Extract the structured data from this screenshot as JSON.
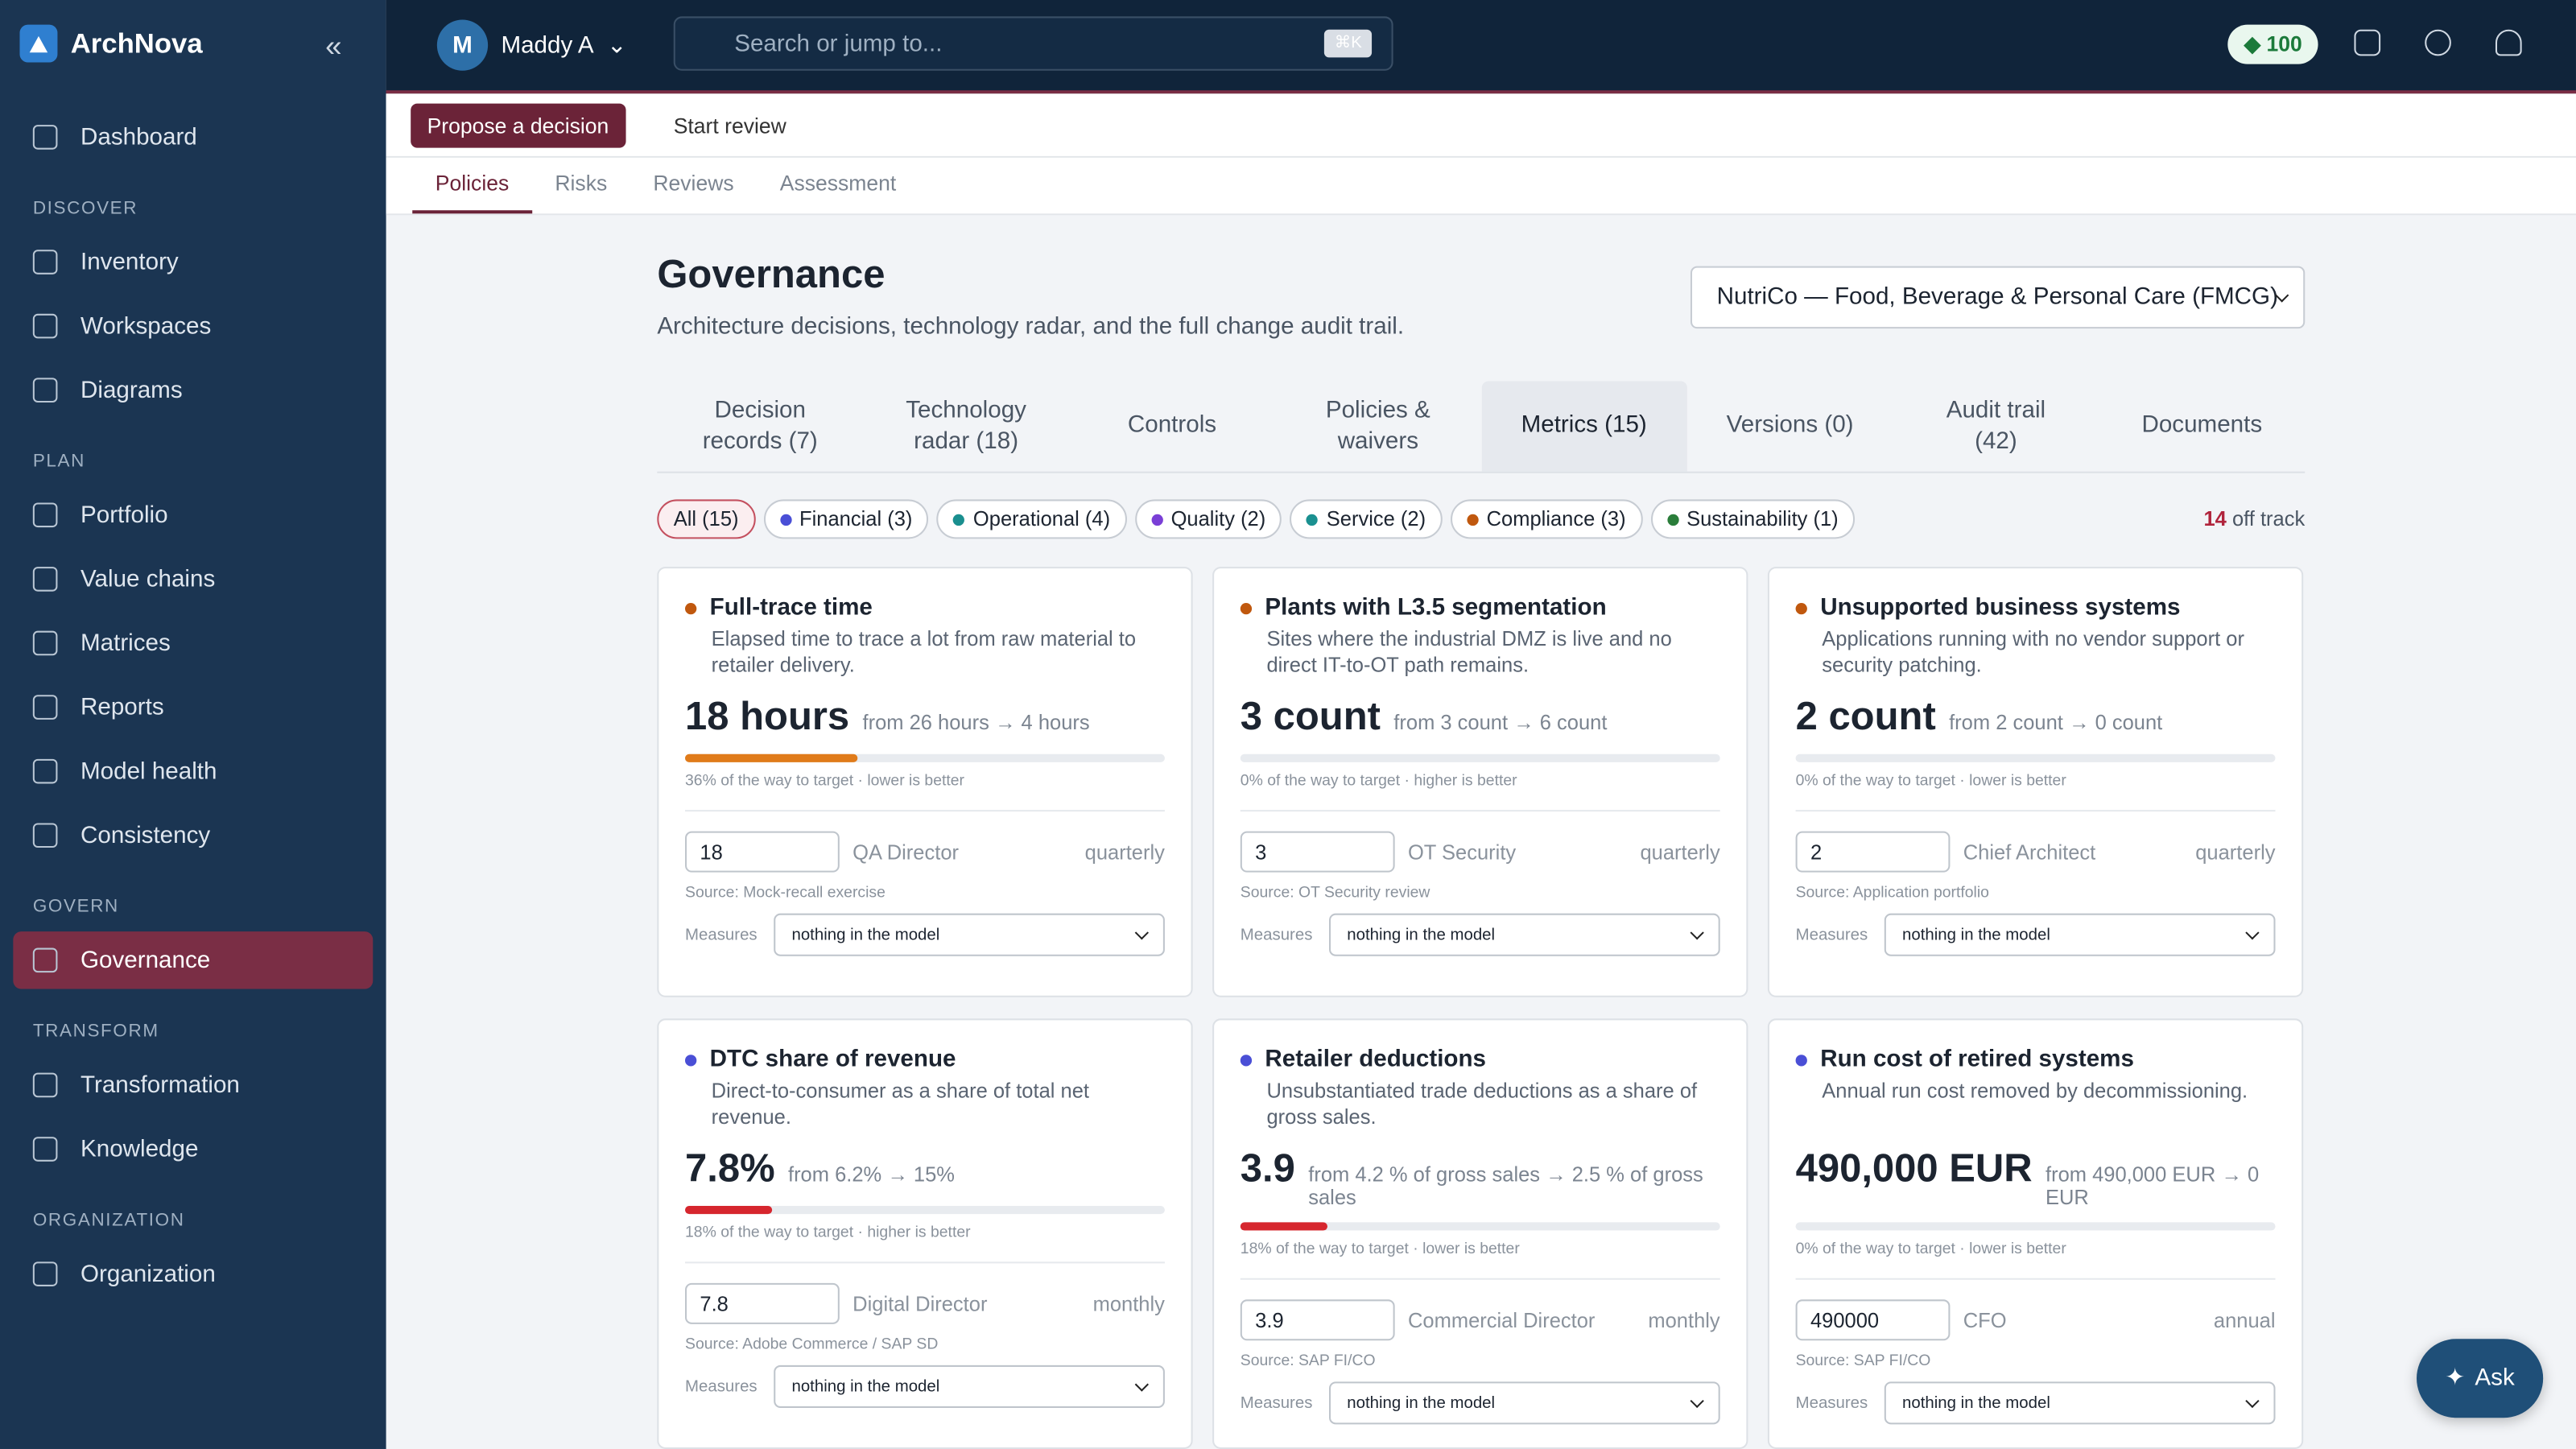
{
  "app": {
    "name": "ArchNova"
  },
  "user": {
    "initial": "M",
    "name": "Maddy A"
  },
  "search": {
    "placeholder": "Search or jump to...",
    "shortcut": "⌘K"
  },
  "credits": "100",
  "sidebar": {
    "top": [
      "Dashboard"
    ],
    "sections": [
      {
        "title": "DISCOVER",
        "items": [
          "Inventory",
          "Workspaces",
          "Diagrams"
        ]
      },
      {
        "title": "PLAN",
        "items": [
          "Portfolio",
          "Value chains",
          "Matrices",
          "Reports",
          "Model health",
          "Consistency"
        ]
      },
      {
        "title": "GOVERN",
        "items": [
          "Governance"
        ]
      },
      {
        "title": "TRANSFORM",
        "items": [
          "Transformation",
          "Knowledge"
        ]
      },
      {
        "title": "ORGANIZATION",
        "items": [
          "Organization"
        ]
      }
    ]
  },
  "actions": {
    "primary": "Propose a decision",
    "secondary": "Start review"
  },
  "subtabs": [
    "Policies",
    "Risks",
    "Reviews",
    "Assessment"
  ],
  "header": {
    "title": "Governance",
    "subtitle": "Architecture decisions, technology radar, and the full change audit trail.",
    "org": "NutriCo — Food, Beverage & Personal Care (FMCG)"
  },
  "tabs": [
    "Decision records (7)",
    "Technology radar (18)",
    "Controls",
    "Policies & waivers",
    "Metrics (15)",
    "Versions (0)",
    "Audit trail (42)",
    "Documents"
  ],
  "filters": [
    {
      "label": "All (15)"
    },
    {
      "label": "Financial (3)",
      "color": "#4a4fd6"
    },
    {
      "label": "Operational (4)",
      "color": "#1a8f8f"
    },
    {
      "label": "Quality (2)",
      "color": "#7a3fd6"
    },
    {
      "label": "Service (2)",
      "color": "#1a9090"
    },
    {
      "label": "Compliance (3)",
      "color": "#c0580e"
    },
    {
      "label": "Sustainability (1)",
      "color": "#2a7d3a"
    }
  ],
  "off_track": {
    "count": "14",
    "label": "off track"
  },
  "cards": [
    {
      "title": "Full-trace time",
      "dot_color": "#c0580e",
      "description": "Elapsed time to trace a lot from raw material to retailer delivery.",
      "value": "18 hours",
      "from": "from 26 hours → 4 hours",
      "progress": 36,
      "bar_color": "#e07b1a",
      "progress_label": "36% of the way to target · lower is better",
      "input": "18",
      "owner": "QA Director",
      "frequency": "quarterly",
      "source": "Source: Mock-recall exercise",
      "measures": "Measures",
      "measure_value": "nothing in the model"
    },
    {
      "title": "Plants with L3.5 segmentation",
      "dot_color": "#c0580e",
      "description": "Sites where the industrial DMZ is live and no direct IT-to-OT path remains.",
      "value": "3 count",
      "from": "from 3 count → 6 count",
      "progress": 0,
      "bar_color": "#e07b1a",
      "progress_label": "0% of the way to target · higher is better",
      "input": "3",
      "owner": "OT Security",
      "frequency": "quarterly",
      "source": "Source: OT Security review",
      "measures": "Measures",
      "measure_value": "nothing in the model"
    },
    {
      "title": "Unsupported business systems",
      "dot_color": "#c0580e",
      "description": "Applications running with no vendor support or security patching.",
      "value": "2 count",
      "from": "from 2 count → 0 count",
      "progress": 0,
      "bar_color": "#e07b1a",
      "progress_label": "0% of the way to target · lower is better",
      "input": "2",
      "owner": "Chief Architect",
      "frequency": "quarterly",
      "source": "Source: Application portfolio",
      "measures": "Measures",
      "measure_value": "nothing in the model"
    },
    {
      "title": "DTC share of revenue",
      "dot_color": "#4a4fd6",
      "description": "Direct-to-consumer as a share of total net revenue.",
      "value": "7.8%",
      "from": "from 6.2% → 15%",
      "progress": 18,
      "bar_color": "#d6262e",
      "progress_label": "18% of the way to target · higher is better",
      "input": "7.8",
      "owner": "Digital Director",
      "frequency": "monthly",
      "source": "Source: Adobe Commerce / SAP SD",
      "measures": "Measures",
      "measure_value": "nothing in the model"
    },
    {
      "title": "Retailer deductions",
      "dot_color": "#4a4fd6",
      "description": "Unsubstantiated trade deductions as a share of gross sales.",
      "value": "3.9",
      "from": "from 4.2 % of gross sales → 2.5 % of gross sales",
      "progress": 18,
      "bar_color": "#d6262e",
      "progress_label": "18% of the way to target · lower is better",
      "input": "3.9",
      "owner": "Commercial Director",
      "frequency": "monthly",
      "source": "Source: SAP FI/CO",
      "measures": "Measures",
      "measure_value": "nothing in the model"
    },
    {
      "title": "Run cost of retired systems",
      "dot_color": "#4a4fd6",
      "description": "Annual run cost removed by decommissioning.",
      "value": "490,000 EUR",
      "from": "from 490,000 EUR → 0 EUR",
      "progress": 0,
      "bar_color": "#d6262e",
      "progress_label": "0% of the way to target · lower is better",
      "input": "490000",
      "owner": "CFO",
      "frequency": "annual",
      "source": "Source: SAP FI/CO",
      "measures": "Measures",
      "measure_value": "nothing in the model"
    }
  ],
  "ask": "Ask"
}
